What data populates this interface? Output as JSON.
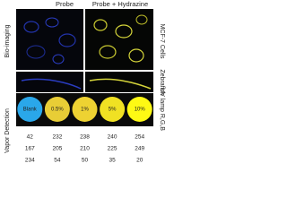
{
  "header": {
    "columns": [
      "Probe",
      "Probe + Hydrazine"
    ]
  },
  "row_labels": [
    "Bio-imaging",
    "Vapor Detection"
  ],
  "side_labels": [
    "MCF-7 Cells",
    "Zebrafish",
    "UV lamp R,G,B"
  ],
  "samples": [
    {
      "label": "Blank",
      "rgb": [
        42,
        167,
        234
      ]
    },
    {
      "label": "0.5%",
      "rgb": [
        232,
        205,
        54
      ]
    },
    {
      "label": "1%",
      "rgb": [
        238,
        210,
        50
      ]
    },
    {
      "label": "5%",
      "rgb": [
        240,
        225,
        35
      ]
    },
    {
      "label": "10%",
      "rgb": [
        254,
        249,
        20
      ]
    }
  ]
}
